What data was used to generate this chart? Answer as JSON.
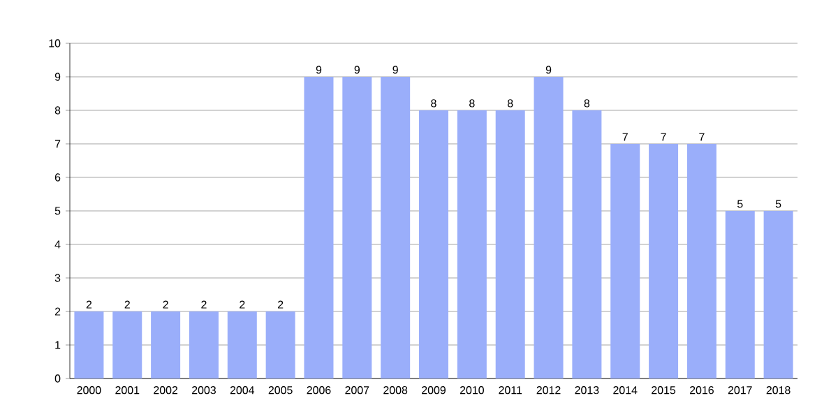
{
  "chart_data": {
    "type": "bar",
    "categories": [
      "2000",
      "2001",
      "2002",
      "2003",
      "2004",
      "2005",
      "2006",
      "2007",
      "2008",
      "2009",
      "2010",
      "2011",
      "2012",
      "2013",
      "2014",
      "2015",
      "2016",
      "2017",
      "2018"
    ],
    "values": [
      2,
      2,
      2,
      2,
      2,
      2,
      9,
      9,
      9,
      8,
      8,
      8,
      9,
      8,
      7,
      7,
      7,
      5,
      5
    ],
    "color": "#9aaefa",
    "ylim": [
      0,
      10
    ],
    "yticks": [
      0,
      1,
      2,
      3,
      4,
      5,
      6,
      7,
      8,
      9,
      10
    ],
    "grid": "y",
    "data_labels": true
  }
}
